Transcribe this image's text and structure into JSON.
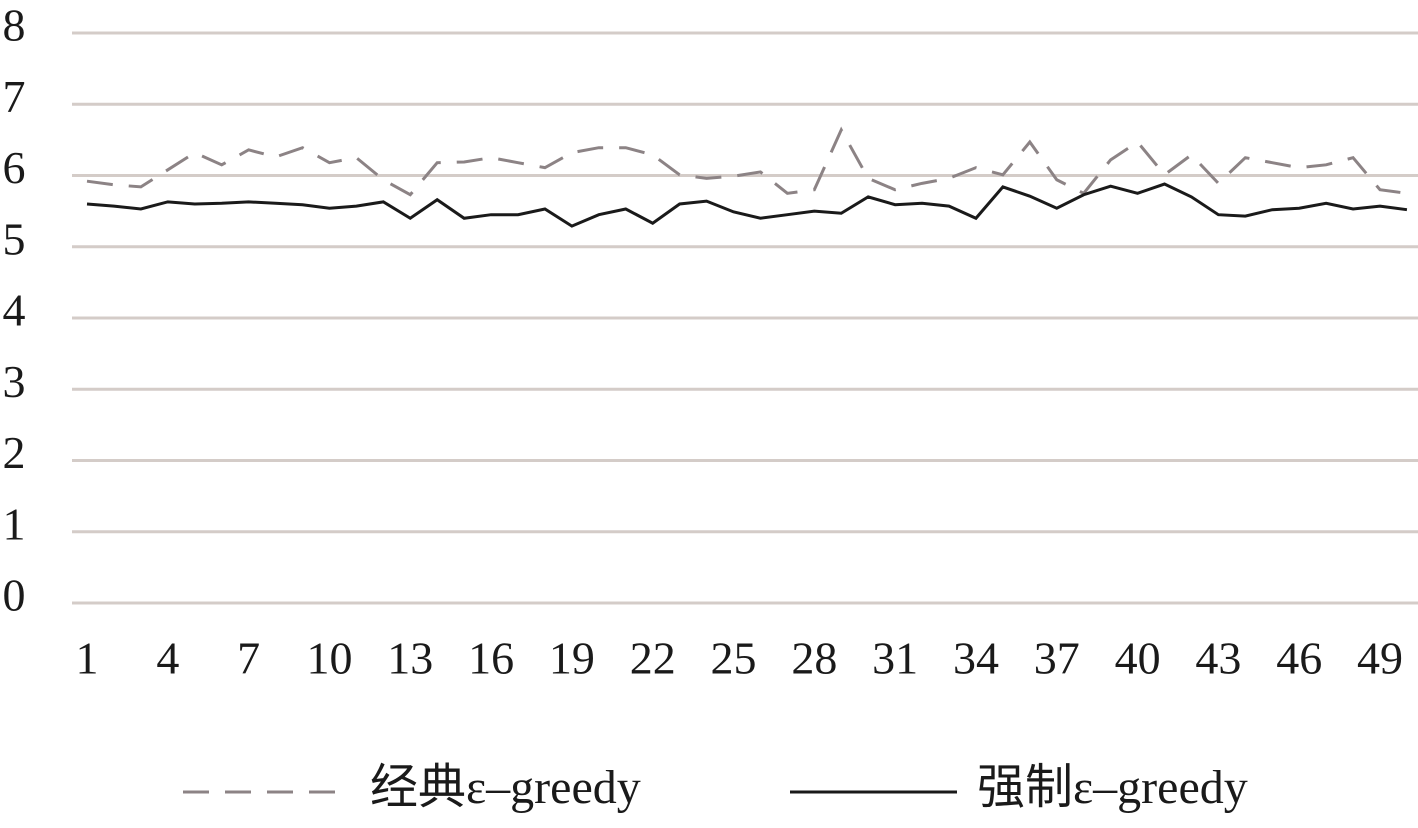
{
  "chart_data": {
    "type": "line",
    "categories": [
      1,
      null,
      null,
      4,
      null,
      null,
      7,
      null,
      null,
      10,
      null,
      null,
      13,
      null,
      null,
      16,
      null,
      null,
      19,
      null,
      null,
      22,
      null,
      null,
      25,
      null,
      null,
      28,
      null,
      null,
      31,
      null,
      null,
      34,
      null,
      null,
      37,
      null,
      null,
      40,
      null,
      null,
      43,
      null,
      null,
      46,
      null,
      null,
      49,
      null
    ],
    "series": [
      {
        "name": "经典ε–greedy",
        "color": "#8c8385",
        "style": "dashed",
        "values": [
          5.92,
          5.87,
          5.84,
          6.08,
          6.32,
          6.15,
          6.36,
          6.26,
          6.39,
          6.18,
          6.25,
          5.94,
          5.73,
          6.18,
          6.19,
          6.25,
          6.18,
          6.11,
          6.32,
          6.39,
          6.39,
          6.29,
          6.01,
          5.96,
          5.99,
          6.05,
          5.75,
          5.8,
          6.64,
          5.96,
          5.8,
          5.89,
          5.96,
          6.11,
          6.01,
          6.47,
          5.94,
          5.75,
          6.22,
          6.47,
          6.01,
          6.29,
          5.89,
          6.25,
          6.18,
          6.11,
          6.15,
          6.25,
          5.8,
          5.75
        ]
      },
      {
        "name": "强制ε–greedy",
        "color": "#1a1a1a",
        "style": "solid",
        "values": [
          5.6,
          5.57,
          5.53,
          5.63,
          5.6,
          5.61,
          5.63,
          5.61,
          5.59,
          5.54,
          5.57,
          5.63,
          5.4,
          5.66,
          5.4,
          5.45,
          5.45,
          5.53,
          5.29,
          5.45,
          5.53,
          5.33,
          5.6,
          5.64,
          5.49,
          5.4,
          5.45,
          5.5,
          5.47,
          5.7,
          5.59,
          5.61,
          5.57,
          5.4,
          5.84,
          5.71,
          5.54,
          5.73,
          5.85,
          5.75,
          5.88,
          5.7,
          5.45,
          5.43,
          5.52,
          5.54,
          5.61,
          5.53,
          5.57,
          5.52
        ]
      }
    ],
    "ylim": [
      0,
      8
    ],
    "yticks": [
      0,
      1,
      2,
      3,
      4,
      5,
      6,
      7,
      8
    ],
    "grid": true,
    "legend": "bottom"
  }
}
